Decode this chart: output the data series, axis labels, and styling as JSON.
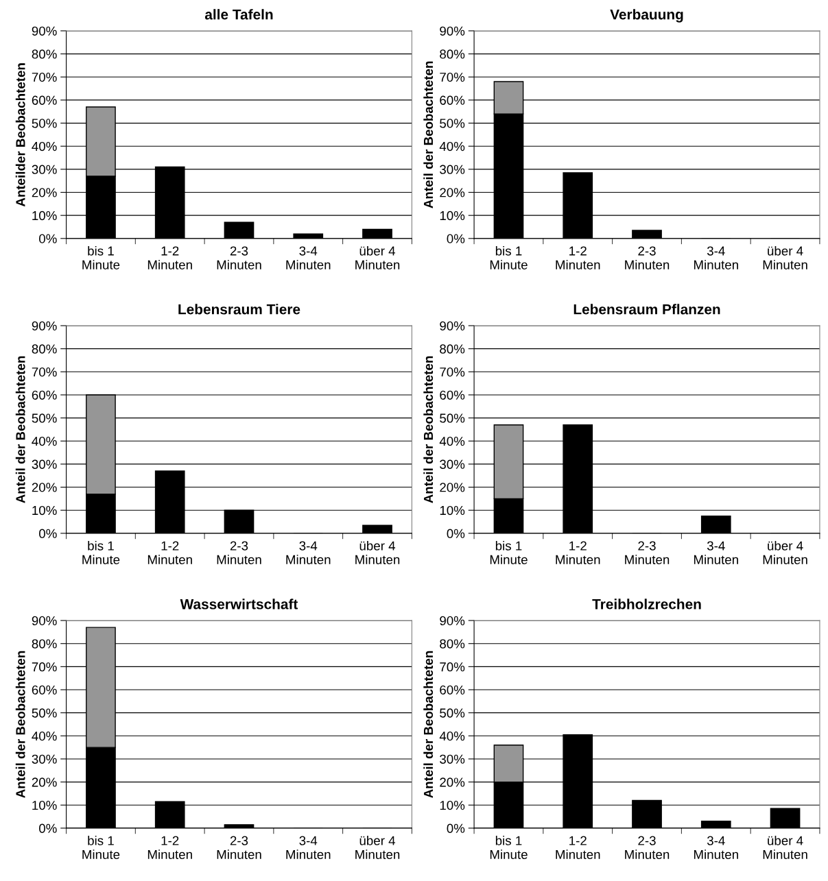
{
  "chart_data": [
    {
      "type": "bar",
      "stacked": true,
      "title": "alle Tafeln",
      "ylabel": "Anteilder Beobachteten",
      "categories": [
        "bis 1\nMinute",
        "1-2\nMinuten",
        "2-3\nMinuten",
        "3-4\nMinuten",
        "über 4\nMinuten"
      ],
      "series": [
        {
          "color": "#000000",
          "values": [
            27,
            31,
            7,
            2,
            4
          ]
        },
        {
          "color": "#969696",
          "values": [
            30,
            null,
            null,
            null,
            null
          ]
        }
      ],
      "ylim": [
        0,
        90
      ],
      "yticks": [
        {
          "value": 0,
          "label": "0%"
        },
        {
          "value": 10,
          "label": "10%"
        },
        {
          "value": 20,
          "label": "20%"
        },
        {
          "value": 30,
          "label": "30%"
        },
        {
          "value": 40,
          "label": "40%"
        },
        {
          "value": 50,
          "label": "50%"
        },
        {
          "value": 60,
          "label": "60%"
        },
        {
          "value": 70,
          "label": "70%"
        },
        {
          "value": 80,
          "label": "80%"
        },
        {
          "value": 90,
          "label": "90%"
        }
      ],
      "grid": "y",
      "legend": false
    },
    {
      "type": "bar",
      "stacked": true,
      "title": "Verbauung",
      "ylabel": "Anteil der Beobachteten",
      "categories": [
        "bis 1\nMinute",
        "1-2\nMinuten",
        "2-3\nMinuten",
        "3-4\nMinuten",
        "über 4\nMinuten"
      ],
      "series": [
        {
          "color": "#000000",
          "values": [
            54,
            28.5,
            3.5,
            0,
            0
          ]
        },
        {
          "color": "#969696",
          "values": [
            14,
            null,
            null,
            null,
            null
          ]
        }
      ],
      "ylim": [
        0,
        90
      ],
      "yticks": [
        {
          "value": 0,
          "label": "0%"
        },
        {
          "value": 10,
          "label": "10%"
        },
        {
          "value": 20,
          "label": "20%"
        },
        {
          "value": 30,
          "label": "30%"
        },
        {
          "value": 40,
          "label": "40%"
        },
        {
          "value": 50,
          "label": "50%"
        },
        {
          "value": 60,
          "label": "60%"
        },
        {
          "value": 70,
          "label": "70%"
        },
        {
          "value": 80,
          "label": "80%"
        },
        {
          "value": 90,
          "label": "90%"
        }
      ],
      "grid": "y",
      "legend": false
    },
    {
      "type": "bar",
      "stacked": true,
      "title": "Lebensraum Tiere",
      "ylabel": "Anteil der Beobachteten",
      "categories": [
        "bis 1\nMinute",
        "1-2\nMinuten",
        "2-3\nMinuten",
        "3-4\nMinuten",
        "über 4\nMinuten"
      ],
      "series": [
        {
          "color": "#000000",
          "values": [
            17,
            27,
            10,
            0,
            3.5
          ]
        },
        {
          "color": "#969696",
          "values": [
            43,
            null,
            null,
            null,
            null
          ]
        }
      ],
      "ylim": [
        0,
        90
      ],
      "yticks": [
        {
          "value": 0,
          "label": "0%"
        },
        {
          "value": 10,
          "label": "10%"
        },
        {
          "value": 20,
          "label": "20%"
        },
        {
          "value": 30,
          "label": "30%"
        },
        {
          "value": 40,
          "label": "40%"
        },
        {
          "value": 50,
          "label": "50%"
        },
        {
          "value": 60,
          "label": "60%"
        },
        {
          "value": 70,
          "label": "70%"
        },
        {
          "value": 80,
          "label": "80%"
        },
        {
          "value": 90,
          "label": "90%"
        }
      ],
      "grid": "y",
      "legend": false
    },
    {
      "type": "bar",
      "stacked": true,
      "title": "Lebensraum Pflanzen",
      "ylabel": "Anteil der Beobachteten",
      "categories": [
        "bis 1\nMinute",
        "1-2\nMinuten",
        "2-3\nMinuten",
        "3-4\nMinuten",
        "über 4\nMinuten"
      ],
      "series": [
        {
          "color": "#000000",
          "values": [
            15,
            47,
            0,
            7.5,
            0
          ]
        },
        {
          "color": "#969696",
          "values": [
            32,
            null,
            null,
            null,
            null
          ]
        }
      ],
      "ylim": [
        0,
        90
      ],
      "yticks": [
        {
          "value": 0,
          "label": "0%"
        },
        {
          "value": 10,
          "label": "10%"
        },
        {
          "value": 20,
          "label": "20%"
        },
        {
          "value": 30,
          "label": "30%"
        },
        {
          "value": 40,
          "label": "40%"
        },
        {
          "value": 50,
          "label": "50%"
        },
        {
          "value": 60,
          "label": "60%"
        },
        {
          "value": 70,
          "label": "70%"
        },
        {
          "value": 80,
          "label": "80%"
        },
        {
          "value": 90,
          "label": "90%"
        }
      ],
      "grid": "y",
      "legend": false
    },
    {
      "type": "bar",
      "stacked": true,
      "title": "Wasserwirtschaft",
      "ylabel": "Anteil der Beobachteten",
      "categories": [
        "bis 1\nMinute",
        "1-2\nMinuten",
        "2-3\nMinuten",
        "3-4\nMinuten",
        "über 4\nMinuten"
      ],
      "series": [
        {
          "color": "#000000",
          "values": [
            35,
            11.5,
            1.5,
            0,
            0
          ]
        },
        {
          "color": "#969696",
          "values": [
            52,
            null,
            null,
            null,
            null
          ]
        }
      ],
      "ylim": [
        0,
        90
      ],
      "yticks": [
        {
          "value": 0,
          "label": "0%"
        },
        {
          "value": 10,
          "label": "10%"
        },
        {
          "value": 20,
          "label": "20%"
        },
        {
          "value": 30,
          "label": "30%"
        },
        {
          "value": 40,
          "label": "40%"
        },
        {
          "value": 50,
          "label": "50%"
        },
        {
          "value": 60,
          "label": "60%"
        },
        {
          "value": 70,
          "label": "70%"
        },
        {
          "value": 80,
          "label": "80%"
        },
        {
          "value": 90,
          "label": "90%"
        }
      ],
      "grid": "y",
      "legend": false
    },
    {
      "type": "bar",
      "stacked": true,
      "title": "Treibholzrechen",
      "ylabel": "Anteil der Beobachteten",
      "categories": [
        "bis 1\nMinute",
        "1-2\nMinuten",
        "2-3\nMinuten",
        "3-4\nMinuten",
        "über 4\nMinuten"
      ],
      "series": [
        {
          "color": "#000000",
          "values": [
            20,
            40.5,
            12,
            3,
            8.5
          ]
        },
        {
          "color": "#969696",
          "values": [
            16,
            null,
            null,
            null,
            null
          ]
        }
      ],
      "ylim": [
        0,
        90
      ],
      "yticks": [
        {
          "value": 0,
          "label": "0%"
        },
        {
          "value": 10,
          "label": "10%"
        },
        {
          "value": 20,
          "label": "20%"
        },
        {
          "value": 30,
          "label": "30%"
        },
        {
          "value": 40,
          "label": "40%"
        },
        {
          "value": 50,
          "label": "50%"
        },
        {
          "value": 60,
          "label": "60%"
        },
        {
          "value": 70,
          "label": "70%"
        },
        {
          "value": 80,
          "label": "80%"
        },
        {
          "value": 90,
          "label": "90%"
        }
      ],
      "grid": "y",
      "legend": false
    }
  ]
}
